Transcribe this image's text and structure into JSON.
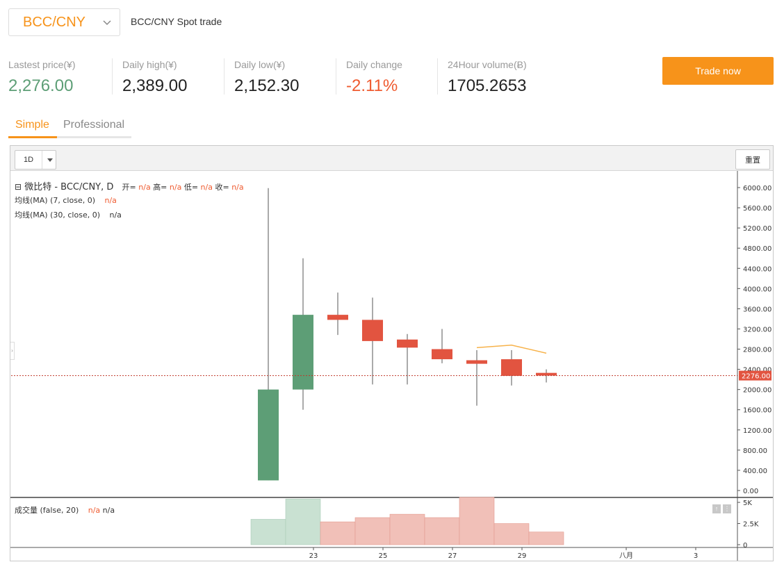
{
  "header": {
    "pair": "BCC/CNY",
    "description": "BCC/CNY Spot trade"
  },
  "stats": [
    {
      "label": "Lastest price(¥)",
      "value": "2,276.00",
      "tone": "green"
    },
    {
      "label": "Daily high(¥)",
      "value": "2,389.00",
      "tone": "normal"
    },
    {
      "label": "Daily low(¥)",
      "value": "2,152.30",
      "tone": "normal"
    },
    {
      "label": "Daily change",
      "value": "-2.11%",
      "tone": "red"
    },
    {
      "label": "24Hour volume(Ƀ)",
      "value": "1705.2653",
      "tone": "normal"
    }
  ],
  "trade_button": "Trade now",
  "tabs": [
    {
      "label": "Simple",
      "active": true
    },
    {
      "label": "Professional",
      "active": false
    }
  ],
  "toolbar": {
    "interval": "1D",
    "reset": "重置"
  },
  "legend": {
    "collapse_symbol": "⊟",
    "symbol": "微比特 - BCC/CNY, D",
    "ohlc": [
      {
        "k": "开=",
        "v": "n/a"
      },
      {
        "k": "高=",
        "v": "n/a"
      },
      {
        "k": "低=",
        "v": "n/a"
      },
      {
        "k": "收=",
        "v": "n/a"
      }
    ],
    "ma7": {
      "label": "均线(MA) (7, close, 0)",
      "value": "n/a"
    },
    "ma30": {
      "label": "均线(MA) (30, close, 0)",
      "value": "n/a"
    },
    "volume": {
      "label": "成交量 (false, 20)",
      "v1": "n/a",
      "v2": "n/a"
    }
  },
  "colors": {
    "up": "#5d9e76",
    "down": "#e25440",
    "up_vol": "#c9e1d2",
    "down_vol": "#f1c0b8",
    "ma": "#f7b24a",
    "price_line": "#c0392b",
    "accent": "#f7931a"
  },
  "chart_data": {
    "type": "candlestick",
    "price_axis": {
      "ticks": [
        "6000.00",
        "5600.00",
        "5200.00",
        "4800.00",
        "4400.00",
        "4000.00",
        "3600.00",
        "3200.00",
        "2800.00",
        "2400.00",
        "2000.00",
        "1600.00",
        "1200.00",
        "800.00",
        "400.00",
        "0.00"
      ],
      "min": 0,
      "max": 6000
    },
    "current_price_label": "2276.00",
    "current_price": 2276,
    "candles": [
      {
        "date": "22",
        "open": 200,
        "high": 5990,
        "low": 200,
        "close": 2000
      },
      {
        "date": "23",
        "open": 2000,
        "high": 4600,
        "low": 1600,
        "close": 3480
      },
      {
        "date": "24",
        "open": 3480,
        "high": 3920,
        "low": 3080,
        "close": 3380
      },
      {
        "date": "25",
        "open": 3380,
        "high": 3820,
        "low": 2100,
        "close": 2960
      },
      {
        "date": "26",
        "open": 2990,
        "high": 3100,
        "low": 2100,
        "close": 2830
      },
      {
        "date": "27",
        "open": 2800,
        "high": 3200,
        "low": 2520,
        "close": 2600
      },
      {
        "date": "28",
        "open": 2580,
        "high": 2780,
        "low": 1680,
        "close": 2510
      },
      {
        "date": "29",
        "open": 2600,
        "high": 2780,
        "low": 2080,
        "close": 2270
      },
      {
        "date": "30",
        "open": 2330,
        "high": 2400,
        "low": 2140,
        "close": 2276
      }
    ],
    "ma7": [
      {
        "date": "28",
        "value": 2830
      },
      {
        "date": "29",
        "value": 2880
      },
      {
        "date": "30",
        "value": 2720
      }
    ],
    "volume_axis": {
      "ticks": [
        "5K",
        "2.5K",
        "0"
      ],
      "max": 5500
    },
    "volumes": [
      3000,
      5400,
      2700,
      3200,
      3600,
      3200,
      5600,
      2500,
      1500
    ],
    "x_ticks": [
      {
        "label": "23",
        "index": 1
      },
      {
        "label": "25",
        "index": 3
      },
      {
        "label": "27",
        "index": 5
      },
      {
        "label": "29",
        "index": 7
      },
      {
        "label": "八月",
        "index": 10
      },
      {
        "label": "3",
        "index": 12
      }
    ]
  }
}
